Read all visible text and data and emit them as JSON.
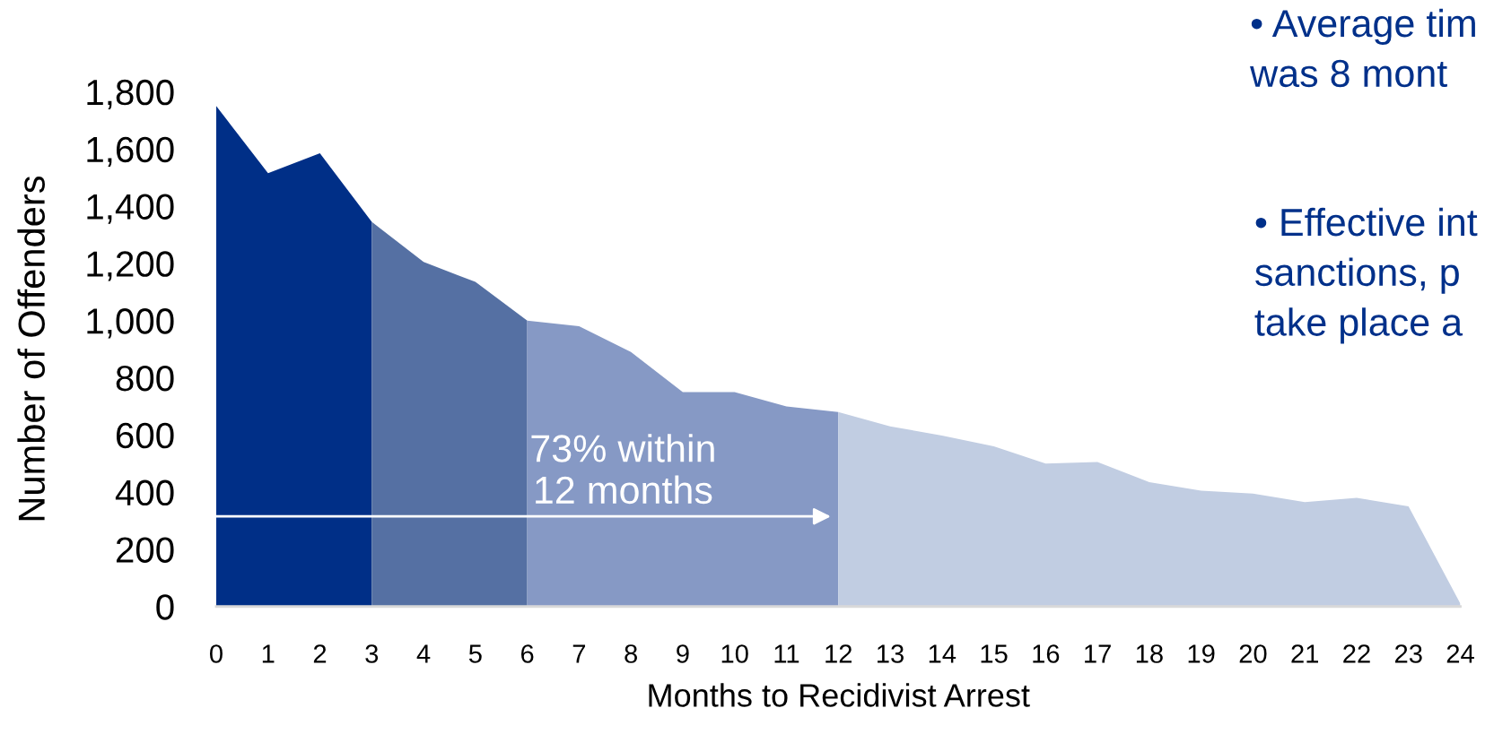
{
  "chart_data": {
    "type": "area",
    "xlabel": "Months to Recidivist Arrest",
    "ylabel": "Number of Offenders",
    "xlim": [
      0,
      24
    ],
    "xticks": [
      0,
      1,
      2,
      3,
      4,
      5,
      6,
      7,
      8,
      9,
      10,
      11,
      12,
      13,
      14,
      15,
      16,
      17,
      18,
      19,
      20,
      21,
      22,
      23,
      24
    ],
    "ylim": [
      0,
      1800
    ],
    "yticks": [
      0,
      200,
      400,
      600,
      800,
      {
        "value": 1000,
        "label": "1,000"
      },
      {
        "value": 1200,
        "label": "1,200"
      },
      {
        "value": 1400,
        "label": "1,400"
      },
      {
        "value": 1600,
        "label": "1,600"
      },
      {
        "value": 1800,
        "label": "1,800"
      }
    ],
    "series": [
      {
        "color": "#002f87",
        "x": [
          0,
          1,
          2,
          3
        ],
        "values": [
          1750,
          1515,
          1585,
          1345
        ]
      },
      {
        "color": "#5570a3",
        "x": [
          3,
          4,
          5,
          6
        ],
        "values": [
          1345,
          1205,
          1135,
          1000
        ]
      },
      {
        "color": "#8699c5",
        "x": [
          6,
          7,
          8,
          9,
          10,
          11,
          12
        ],
        "values": [
          1000,
          980,
          890,
          750,
          750,
          700,
          680
        ]
      },
      {
        "color": "#c1cde2",
        "x": [
          12,
          13,
          14,
          15,
          16,
          17,
          18,
          19,
          20,
          21,
          22,
          23,
          24
        ],
        "values": [
          680,
          630,
          598,
          560,
          500,
          505,
          435,
          405,
          395,
          365,
          380,
          350,
          10
        ]
      }
    ],
    "annotations": [
      "73% within\n12 months",
      "• Average tim\nwas 8 mont",
      "• Effective int\nsanctions, p\ntake place a"
    ]
  }
}
